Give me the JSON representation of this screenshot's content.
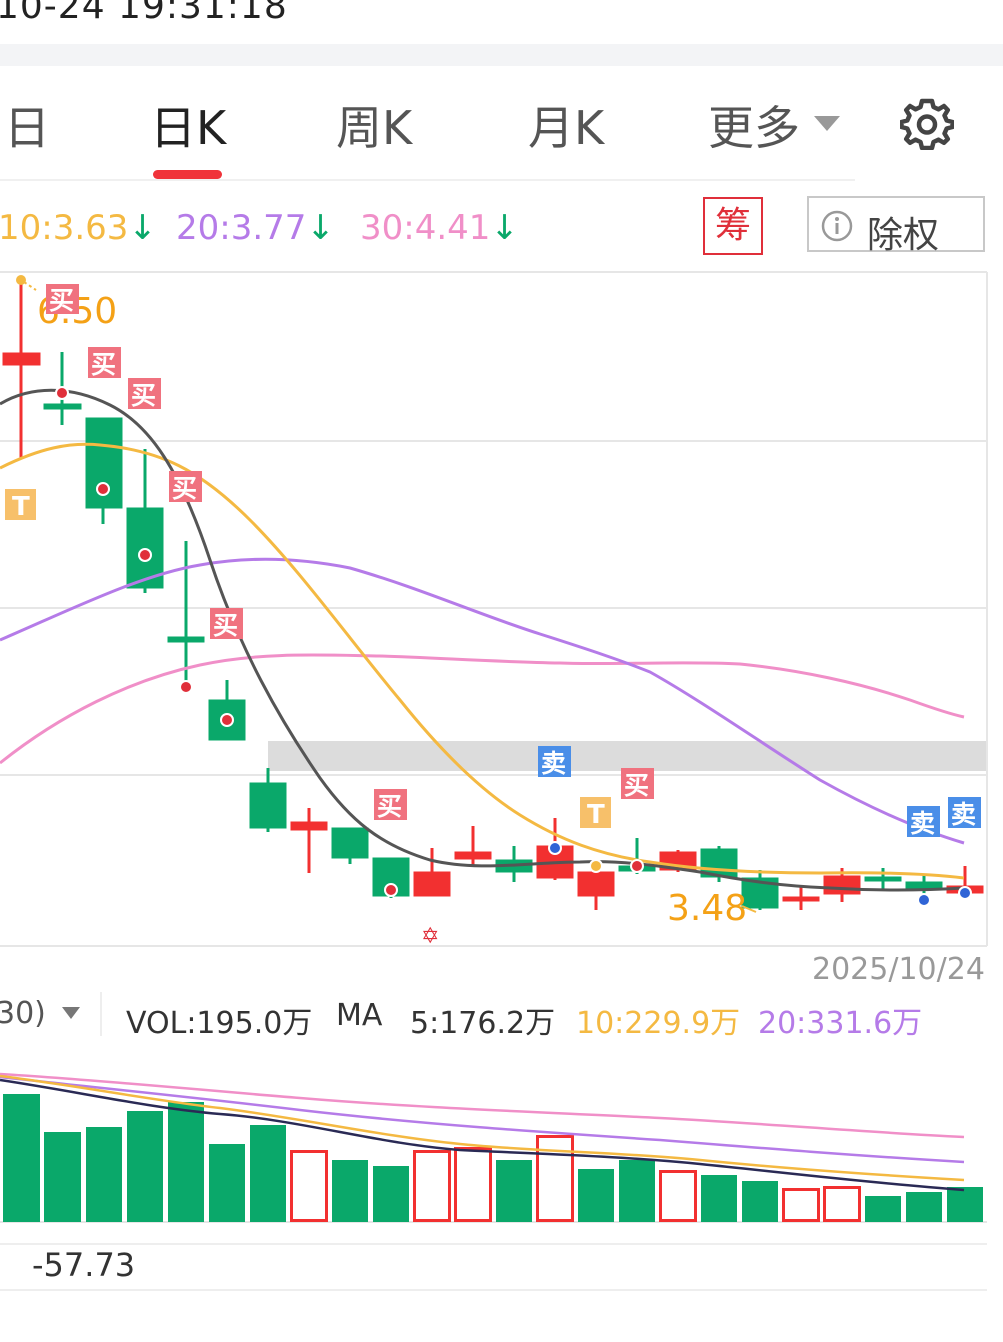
{
  "status": {
    "time": "10-24 19:31:18"
  },
  "tabs": [
    {
      "label": "日"
    },
    {
      "label": "日K"
    },
    {
      "label": "周K"
    },
    {
      "label": "月K"
    },
    {
      "label": "更多"
    }
  ],
  "ma_line": {
    "ma10": "10:3.63",
    "ma20": "20:3.77",
    "ma30": "30:4.41",
    "arrow": "↓"
  },
  "chips": {
    "chou": "筹",
    "chuquan": "除权"
  },
  "chart": {
    "high_label": "6.50",
    "low_label": "3.48",
    "date": "2025/10/24",
    "markers": {
      "buy": "买",
      "sell": "卖",
      "t": "T"
    }
  },
  "volume": {
    "period_suffix": "30)",
    "vol": "VOL:195.0万",
    "ma_label": "MA",
    "ma5": "5:176.2万",
    "ma10": "10:229.9万",
    "ma20": "20:331.6万"
  },
  "macd": {
    "value": "-57.73"
  },
  "colors": {
    "up": "#f23030",
    "down": "#0aa86a",
    "ma5": "#555555",
    "ma10": "#f4b942",
    "ma20": "#b57be8",
    "ma30": "#f08fc8",
    "accent_red": "#f0333a",
    "sell_marker": "#4a8ee8",
    "buy_marker": "#f0727f"
  },
  "icons": {
    "settings": "gear-icon",
    "dropdown": "caret-down-icon",
    "info": "info-icon"
  }
}
